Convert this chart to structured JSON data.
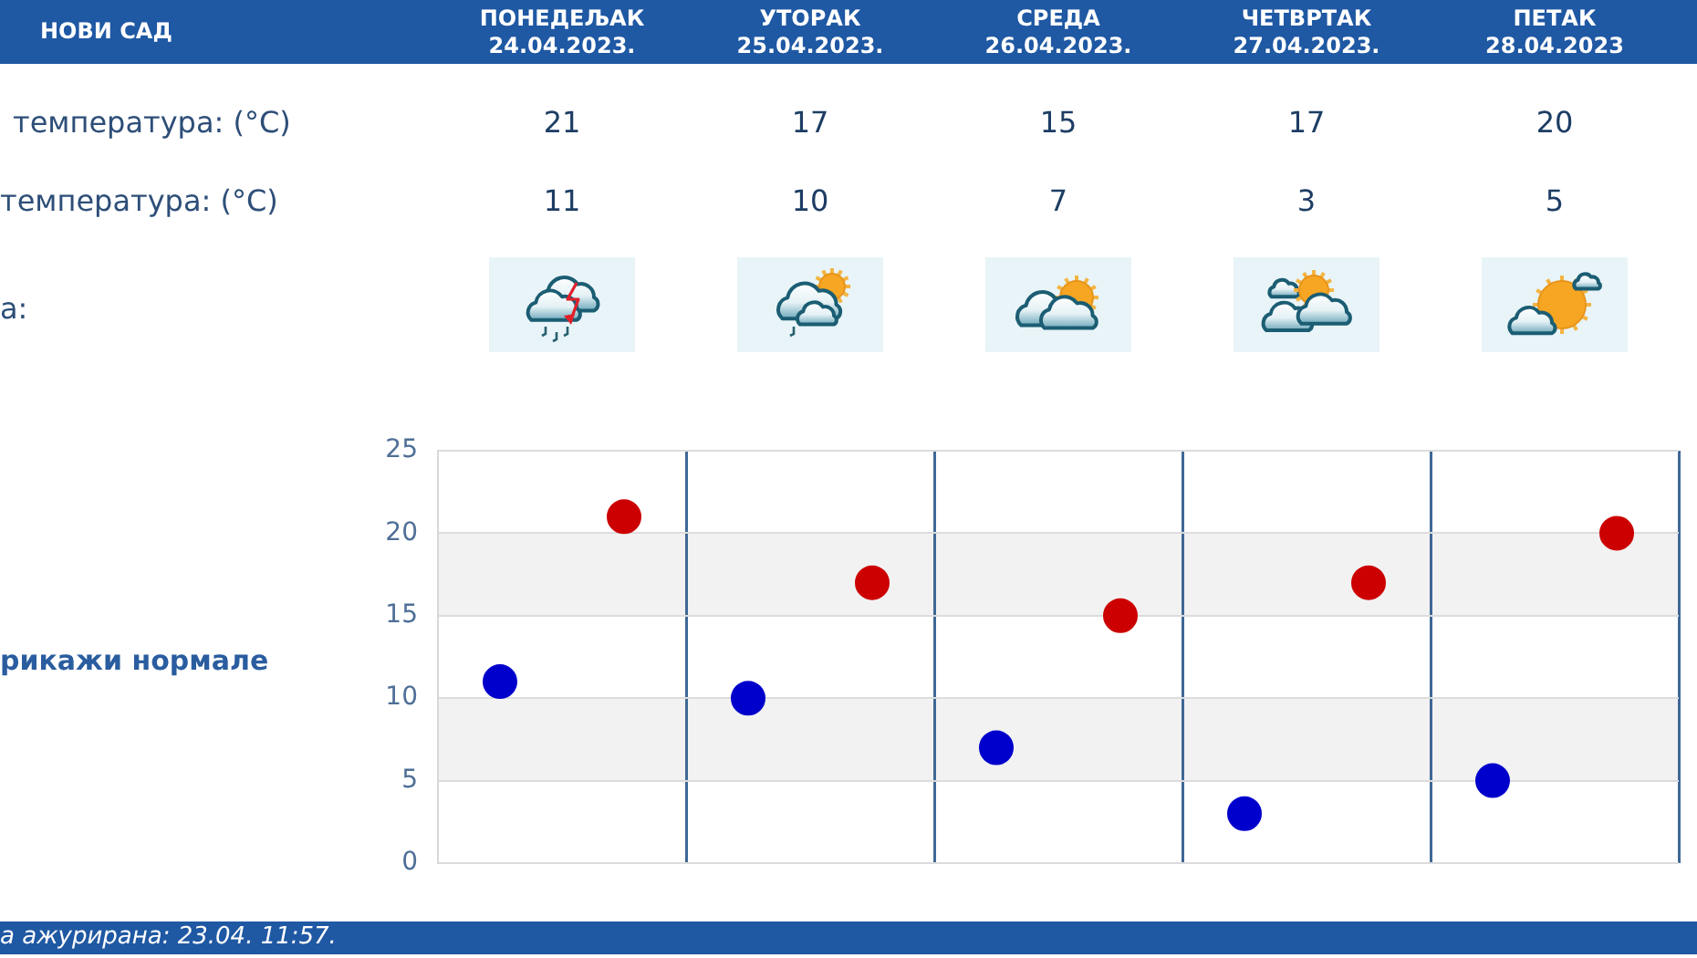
{
  "chart_data": {
    "type": "scatter",
    "title": "НОВИ САД",
    "categories": [
      null,
      null,
      null,
      null,
      null
    ],
    "series": [
      {
        "color": "#cc0000",
        "values": [
          21,
          17,
          15,
          17,
          20
        ]
      },
      {
        "color": "#0000cc",
        "values": [
          11,
          10,
          7,
          3,
          5
        ]
      }
    ],
    "ylim": [
      0,
      25
    ],
    "yticks": [
      0,
      5,
      10,
      15,
      20,
      25
    ],
    "grid": true,
    "marker": "circle",
    "data_labels": true,
    "bands": [
      {
        "axis": "y",
        "from": 5,
        "to": 10,
        "color": "#f2f2f2"
      },
      {
        "axis": "y",
        "from": 15,
        "to": 20,
        "color": "#f2f2f2"
      }
    ],
    "annotations": [
      "ПОНЕДЕЉАК\n24.04.2023.",
      "УТОРАК\n25.04.2023.",
      "СРЕДА\n26.04.2023.",
      "ЧЕТВРТАК\n27.04.2023.",
      "ПЕТАК\n28.04.2023",
      "температура: (°C)",
      "температура: (°C)",
      "а:",
      "рикажи нормале",
      "а ажурирана: 23.04. 11:57."
    ]
  }
}
